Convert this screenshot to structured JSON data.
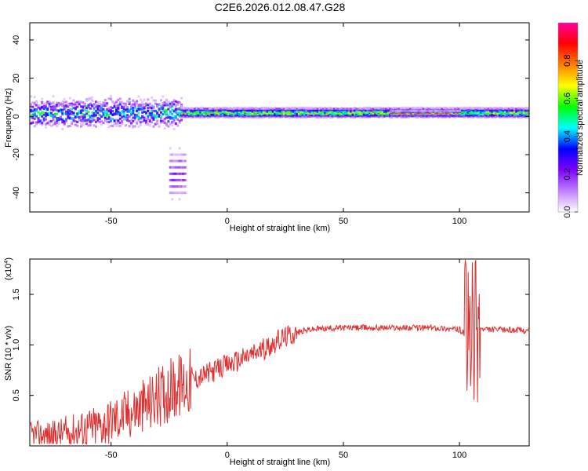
{
  "title": "C2E6.2026.012.08.47.G28",
  "chart_data": [
    {
      "type": "heatmap",
      "title": "C2E6.2026.012.08.47.G28",
      "xlabel": "Height of straight line (km)",
      "ylabel": "Frequency (Hz)",
      "xlim": [
        -85,
        130
      ],
      "ylim": [
        -50,
        49
      ],
      "xticks": [
        -50,
        0,
        50,
        100
      ],
      "yticks": [
        -40,
        -20,
        0,
        20,
        40
      ],
      "colorbar": {
        "label": "Normalized spectral amplitude",
        "range": [
          0,
          1
        ],
        "ticks": [
          "0.0",
          "0.2",
          "0.4",
          "0.6",
          "0.8"
        ],
        "colors": [
          "#ffffff",
          "#c080ff",
          "#8000ff",
          "#0000ff",
          "#00ffff",
          "#00ff00",
          "#ffff00",
          "#ff8000",
          "#ff0000",
          "#ff00a0"
        ]
      },
      "features": [
        {
          "x_from": -85,
          "x_to": -20,
          "freq_center": 2,
          "freq_spread": 8,
          "amplitude": 0.45
        },
        {
          "x_from": -20,
          "x_to": 130,
          "freq_center": 2,
          "freq_spread": 3,
          "amplitude": 0.6
        },
        {
          "x_from": 70,
          "x_to": 100,
          "freq_center": 2,
          "freq_spread": 1,
          "amplitude": 0.95
        },
        {
          "x_from": -25,
          "x_to": -18,
          "freq_center": -30,
          "freq_spread": 20,
          "amplitude": 0.2
        }
      ]
    },
    {
      "type": "line",
      "xlabel": "Height of straight line (km)",
      "ylabel": "SNR (10 * v/v)",
      "exponent_label": "(x10",
      "exponent_power": "4",
      "xlim": [
        -85,
        130
      ],
      "ylim": [
        0,
        1.85
      ],
      "xticks": [
        -50,
        0,
        50,
        100
      ],
      "yticks": [
        0.5,
        1.0,
        1.5
      ],
      "color": "#e03030",
      "series": [
        {
          "name": "SNR",
          "x": [
            -85,
            -75,
            -65,
            -55,
            -45,
            -35,
            -25,
            -20,
            -15,
            -10,
            -5,
            0,
            5,
            10,
            15,
            20,
            25,
            30,
            35,
            40,
            50,
            60,
            70,
            80,
            90,
            100,
            103,
            105,
            107,
            110,
            120,
            130
          ],
          "y": [
            0.12,
            0.1,
            0.15,
            0.2,
            0.3,
            0.4,
            0.55,
            0.6,
            0.65,
            0.7,
            0.75,
            0.8,
            0.85,
            0.9,
            0.95,
            1.02,
            1.08,
            1.12,
            1.15,
            1.16,
            1.17,
            1.17,
            1.17,
            1.17,
            1.17,
            1.15,
            1.1,
            1.0,
            1.2,
            1.15,
            1.15,
            1.14
          ]
        }
      ]
    }
  ]
}
